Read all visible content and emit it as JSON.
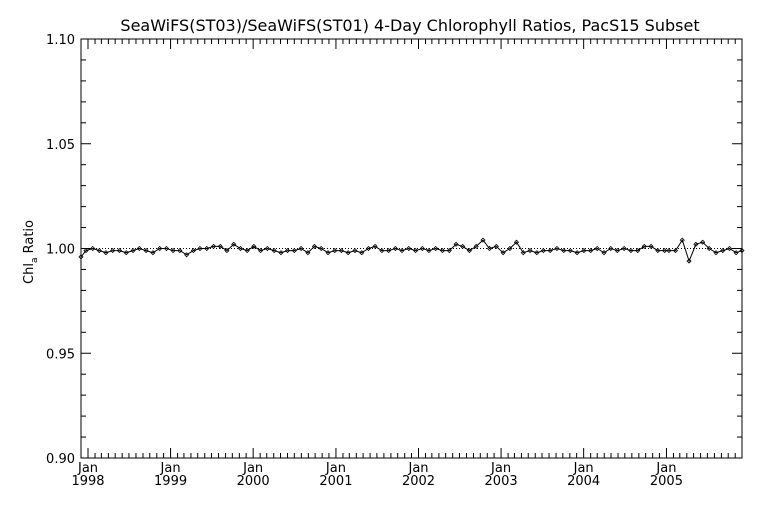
{
  "chart_data": {
    "type": "line",
    "title": "SeaWiFS(ST03)/SeaWiFS(ST01) 4-Day Chlorophyll Ratios, PacS15 Subset",
    "xlabel": "",
    "ylabel": "Chl",
    "ylabel_subscript": "a",
    "ylabel_suffix": " Ratio",
    "ylim": [
      0.9,
      1.1
    ],
    "xlim": [
      "1997-12-01",
      "2005-12-01"
    ],
    "y_ticks": [
      "0.90",
      "0.95",
      "1.00",
      "1.05",
      "1.10"
    ],
    "x_ticks": [
      {
        "month": "Jan",
        "year": "1998",
        "date": "1998-01-01"
      },
      {
        "month": "Jan",
        "year": "1999",
        "date": "1999-01-01"
      },
      {
        "month": "Jan",
        "year": "2000",
        "date": "2000-01-01"
      },
      {
        "month": "Jan",
        "year": "2001",
        "date": "2001-01-01"
      },
      {
        "month": "Jan",
        "year": "2002",
        "date": "2002-01-01"
      },
      {
        "month": "Jan",
        "year": "2003",
        "date": "2003-01-01"
      },
      {
        "month": "Jan",
        "year": "2004",
        "date": "2004-01-01"
      },
      {
        "month": "Jan",
        "year": "2005",
        "date": "2005-01-01"
      }
    ],
    "reference_line": 1.0,
    "grid": false,
    "series": [
      {
        "x": [
          "1997-12-01",
          "1997-12-23",
          "1998-01-22",
          "1998-02-20",
          "1998-03-21",
          "1998-04-20",
          "1998-05-20",
          "1998-06-19",
          "1998-07-19",
          "1998-08-16",
          "1998-09-15",
          "1998-10-15",
          "1998-11-14",
          "1998-12-14",
          "1999-01-12",
          "1999-02-11",
          "1999-03-13",
          "1999-04-12",
          "1999-05-11",
          "1999-06-10",
          "1999-07-10",
          "1999-08-09",
          "1999-09-07",
          "1999-10-07",
          "1999-11-06",
          "1999-12-06",
          "2000-01-04",
          "2000-02-03",
          "2000-03-04",
          "2000-04-03",
          "2000-05-03",
          "2000-06-01",
          "2000-07-01",
          "2000-07-31",
          "2000-08-30",
          "2000-09-28",
          "2000-10-28",
          "2000-11-27",
          "2000-12-27",
          "2001-01-25",
          "2001-02-24",
          "2001-03-26",
          "2001-04-25",
          "2001-05-25",
          "2001-06-23",
          "2001-07-23",
          "2001-08-22",
          "2001-09-21",
          "2001-10-20",
          "2001-11-19",
          "2001-12-19",
          "2002-01-18",
          "2002-02-16",
          "2002-03-18",
          "2002-04-17",
          "2002-05-17",
          "2002-06-16",
          "2002-07-15",
          "2002-08-14",
          "2002-09-13",
          "2002-10-13",
          "2002-11-11",
          "2002-12-11",
          "2003-01-10",
          "2003-02-09",
          "2003-03-10",
          "2003-04-09",
          "2003-05-09",
          "2003-06-08",
          "2003-07-07",
          "2003-08-06",
          "2003-09-05",
          "2003-10-05",
          "2003-11-03",
          "2003-12-03",
          "2004-01-02",
          "2004-02-01",
          "2004-03-01",
          "2004-03-31",
          "2004-04-30",
          "2004-05-29",
          "2004-06-28",
          "2004-07-28",
          "2004-08-27",
          "2004-09-25",
          "2004-10-25",
          "2004-11-24",
          "2004-12-24",
          "2005-01-12",
          "2005-02-10",
          "2005-03-12",
          "2005-04-11",
          "2005-05-11",
          "2005-06-10",
          "2005-07-09",
          "2005-08-08",
          "2005-09-07",
          "2005-10-07",
          "2005-11-05",
          "2005-12-01"
        ],
        "y": [
          0.996,
          0.999,
          1.0,
          0.999,
          0.998,
          0.999,
          0.999,
          0.998,
          0.999,
          1.0,
          0.999,
          0.998,
          1.0,
          1.0,
          0.999,
          0.999,
          0.997,
          0.999,
          1.0,
          1.0,
          1.001,
          1.001,
          0.999,
          1.002,
          1.0,
          0.999,
          1.001,
          0.999,
          1.0,
          0.999,
          0.998,
          0.999,
          0.999,
          1.0,
          0.998,
          1.001,
          1.0,
          0.998,
          0.999,
          0.999,
          0.998,
          0.999,
          0.998,
          1.0,
          1.001,
          0.999,
          0.999,
          1.0,
          0.999,
          1.0,
          0.999,
          1.0,
          0.999,
          1.0,
          0.999,
          0.999,
          1.002,
          1.001,
          0.999,
          1.001,
          1.004,
          1.0,
          1.001,
          0.998,
          1.0,
          1.003,
          0.998,
          0.999,
          0.998,
          0.999,
          0.999,
          1.0,
          0.999,
          0.999,
          0.998,
          0.999,
          0.999,
          1.0,
          0.998,
          1.0,
          0.999,
          1.0,
          0.999,
          0.999,
          1.001,
          1.001,
          0.999,
          0.999,
          0.999,
          0.999,
          1.004,
          0.994,
          1.002,
          1.003,
          1.0,
          0.998,
          0.999,
          1.0,
          0.998,
          0.999
        ]
      }
    ]
  }
}
